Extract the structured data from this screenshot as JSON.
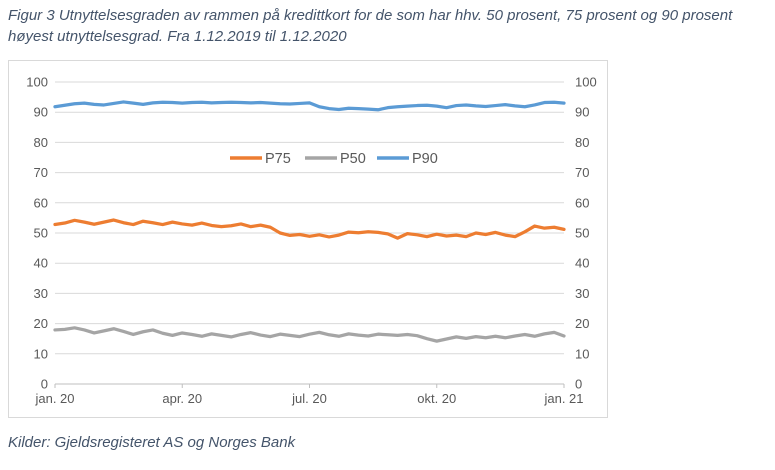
{
  "page": {
    "title": "Figur 3 Utnyttelsesgraden av rammen på kredittkort for de som har hhv. 50 prosent, 75 prosent og 90 prosent høyest utnyttelsesgrad. Fra 1.12.2019 til 1.12.2020",
    "source": "Kilder: Gjeldsregisteret AS og Norges Bank"
  },
  "chart_data": {
    "type": "line",
    "title": "",
    "xlabel": "",
    "ylabel": "",
    "ylim": [
      0,
      100
    ],
    "y_ticks": [
      0,
      10,
      20,
      30,
      40,
      50,
      60,
      70,
      80,
      90,
      100
    ],
    "y_axis_sides": "both",
    "x_tick_labels": [
      "jan. 20",
      "apr. 20",
      "jul. 20",
      "okt. 20",
      "jan. 21"
    ],
    "grid": true,
    "legend_position": "inside-upper-middle",
    "legend_order": [
      "P75",
      "P50",
      "P90"
    ],
    "colors": {
      "grid": "#D9D9D9",
      "axis": "#BFBFBF",
      "tick_label": "#595959",
      "border": "#D9D9D9"
    },
    "series": [
      {
        "name": "P75",
        "color": "#ED7D31",
        "values": [
          52.8,
          53.3,
          54.2,
          53.6,
          52.9,
          53.6,
          54.3,
          53.4,
          52.8,
          53.9,
          53.4,
          52.8,
          53.6,
          53.0,
          52.6,
          53.3,
          52.5,
          52.1,
          52.4,
          53.0,
          52.1,
          52.6,
          51.9,
          50.0,
          49.2,
          49.5,
          48.9,
          49.4,
          48.7,
          49.3,
          50.3,
          50.1,
          50.4,
          50.2,
          49.7,
          48.3,
          49.8,
          49.4,
          48.8,
          49.6,
          49.0,
          49.3,
          48.8,
          50.0,
          49.5,
          50.2,
          49.3,
          48.8,
          50.4,
          52.3,
          51.6,
          51.9,
          51.2
        ]
      },
      {
        "name": "P50",
        "color": "#A5A5A5",
        "values": [
          17.9,
          18.1,
          18.6,
          17.9,
          16.9,
          17.6,
          18.3,
          17.4,
          16.4,
          17.3,
          17.9,
          16.8,
          16.1,
          16.9,
          16.4,
          15.8,
          16.6,
          16.1,
          15.6,
          16.4,
          17.0,
          16.2,
          15.7,
          16.5,
          16.1,
          15.7,
          16.5,
          17.1,
          16.3,
          15.8,
          16.6,
          16.2,
          15.9,
          16.5,
          16.3,
          16.1,
          16.4,
          16.0,
          15.0,
          14.2,
          14.9,
          15.6,
          15.1,
          15.7,
          15.3,
          15.8,
          15.3,
          15.9,
          16.4,
          15.8,
          16.6,
          17.1,
          15.9
        ]
      },
      {
        "name": "P90",
        "color": "#5B9BD5",
        "values": [
          91.8,
          92.3,
          92.8,
          93.0,
          92.6,
          92.4,
          92.9,
          93.4,
          93.0,
          92.6,
          93.1,
          93.3,
          93.2,
          93.0,
          93.2,
          93.3,
          93.1,
          93.2,
          93.3,
          93.2,
          93.1,
          93.2,
          93.0,
          92.8,
          92.7,
          92.9,
          93.1,
          91.8,
          91.2,
          90.9,
          91.3,
          91.2,
          91.0,
          90.8,
          91.5,
          91.8,
          92.0,
          92.2,
          92.3,
          92.0,
          91.5,
          92.2,
          92.4,
          92.1,
          91.9,
          92.2,
          92.5,
          92.1,
          91.8,
          92.4,
          93.2,
          93.3,
          93.0
        ]
      }
    ]
  }
}
